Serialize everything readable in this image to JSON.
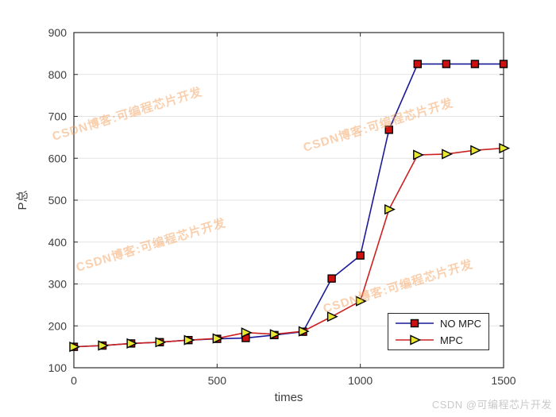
{
  "figure": {
    "background": "#ffffff",
    "watermark_text": "CSDN博客:可编程芯片开发",
    "watermark_color": "#f4a15e",
    "footer_watermark": "CSDN @可编程芯片开发",
    "footer_watermark_color": "#c9c9c9"
  },
  "chart_data": {
    "type": "line",
    "title": "",
    "xlabel": "times",
    "ylabel": "P总",
    "xlim": [
      0,
      1500
    ],
    "ylim": [
      100,
      900
    ],
    "xticks": [
      0,
      500,
      1000,
      1500
    ],
    "yticks": [
      100,
      200,
      300,
      400,
      500,
      600,
      700,
      800,
      900
    ],
    "grid": true,
    "axis_color": "#2b2b2b",
    "grid_color": "#e3e3e3",
    "tick_label_color": "#3d3d3d",
    "legend_position": "lower-right-inside",
    "x": [
      0,
      100,
      200,
      300,
      400,
      500,
      600,
      700,
      800,
      900,
      1000,
      1100,
      1200,
      1300,
      1400,
      1500
    ],
    "series": [
      {
        "name": "NO MPC",
        "line_color": "#1a1a99",
        "marker": "square",
        "marker_fill": "#cc1111",
        "marker_edge": "#000000",
        "values": [
          150,
          153,
          158,
          161,
          166,
          169,
          171,
          178,
          186,
          313,
          368,
          668,
          825,
          825,
          825,
          825
        ]
      },
      {
        "name": "MPC",
        "line_color": "#cc2222",
        "marker": "triangle-right",
        "marker_fill": "#e8e832",
        "marker_edge": "#000000",
        "values": [
          150,
          153,
          158,
          161,
          166,
          170,
          184,
          180,
          187,
          222,
          259,
          478,
          608,
          610,
          619,
          624
        ]
      }
    ]
  }
}
